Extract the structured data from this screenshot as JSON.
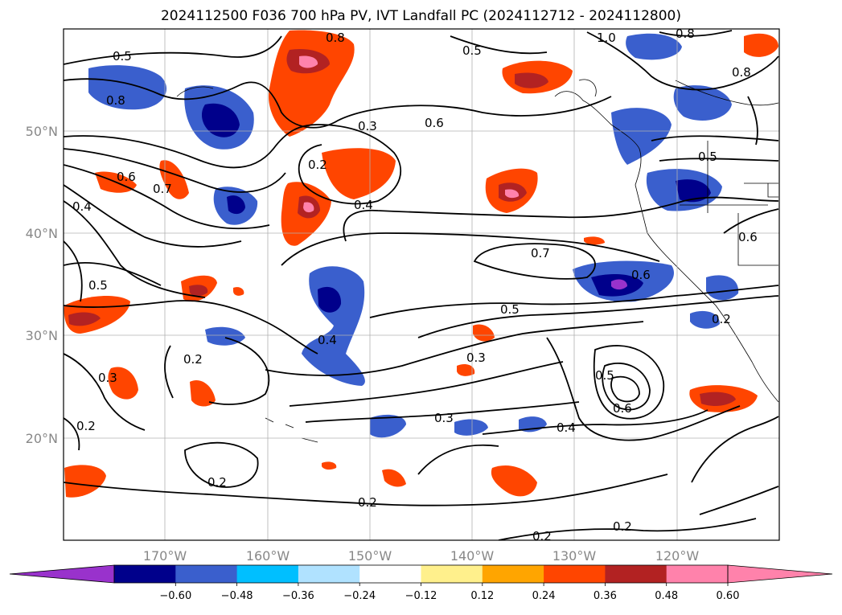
{
  "title": "2024112500 F036 700 hPa PV, IVT Landfall PC (2024112712 - 2024112800)",
  "map": {
    "lat_labels": [
      "50°N",
      "40°N",
      "30°N",
      "20°N"
    ],
    "lon_labels": [
      "170°W",
      "160°W",
      "150°W",
      "140°W",
      "130°W",
      "120°W"
    ],
    "contour_labels": [
      "0.5",
      "0.8",
      "0.8",
      "1.0",
      "0.8",
      "0.8",
      "0.3",
      "0.6",
      "0.2",
      "0.4",
      "0.6",
      "0.7",
      "0.4",
      "0.5",
      "0.7",
      "0.6",
      "0.6",
      "0.5",
      "0.5",
      "0.2",
      "0.4",
      "0.3",
      "0.3",
      "0.2",
      "0.2",
      "0.5",
      "0.6",
      "0.3",
      "0.4",
      "0.2",
      "0.2",
      "0.2",
      "0.2",
      "0.5"
    ]
  },
  "colorbar": {
    "ticks": [
      "−0.60",
      "−0.48",
      "−0.36",
      "−0.24",
      "−0.12",
      "0.12",
      "0.24",
      "0.36",
      "0.48",
      "0.60"
    ],
    "colors": [
      "#9932cc",
      "#00008b",
      "#3a5fcd",
      "#00bfff",
      "#b0e2ff",
      "#ffffff",
      "#fff08c",
      "#ffa500",
      "#ff4500",
      "#b22222",
      "#ff82ab",
      "#ff82ab"
    ]
  }
}
